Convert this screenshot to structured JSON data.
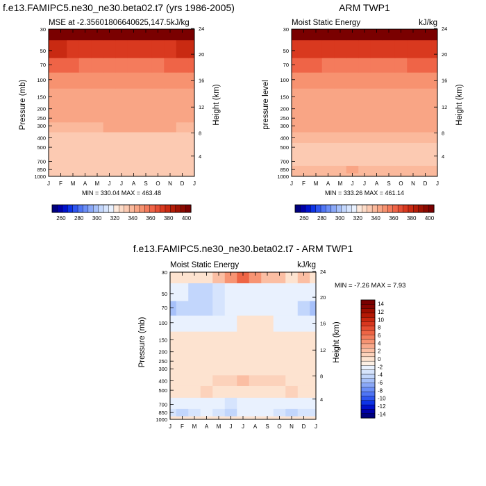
{
  "chart_data": [
    {
      "type": "heatmap",
      "panel": "model",
      "title": "f.e13.FAMIPC5.ne30_ne30.beta02.t7 (yrs 1986-2005)",
      "left_label": "MSE at -2.35601806640625,147.5",
      "right_label": "kJ/kg",
      "ylabel": "Pressure (mb)",
      "ylabel_right": "Height (km)",
      "x_ticks": [
        "J",
        "F",
        "M",
        "A",
        "M",
        "J",
        "J",
        "A",
        "S",
        "O",
        "N",
        "D",
        "J"
      ],
      "pressure_ticks": [
        "30",
        "50",
        "70",
        "100",
        "150",
        "200",
        "250",
        "300",
        "400",
        "500",
        "700",
        "850",
        "1000"
      ],
      "height_ticks": [
        "24",
        "20",
        "16",
        "12",
        "8",
        "4"
      ],
      "stats": "MIN = 330.04   MAX = 463.48",
      "min": 330.04,
      "max": 463.48,
      "pressure_levels": [
        1000,
        850,
        700,
        500,
        400,
        300,
        250,
        200,
        150,
        100,
        70,
        50,
        30
      ],
      "values": [
        [
          333,
          333,
          333,
          333,
          333,
          333,
          333,
          333,
          333,
          333,
          333,
          333,
          333
        ],
        [
          331,
          331,
          331,
          331,
          331,
          331,
          331,
          331,
          331,
          331,
          331,
          331,
          331
        ],
        [
          331,
          331,
          331,
          331,
          331,
          331,
          331,
          331,
          331,
          331,
          331,
          331,
          331
        ],
        [
          332,
          332,
          332,
          332,
          332,
          332,
          332,
          332,
          332,
          332,
          332,
          332,
          332
        ],
        [
          334,
          334,
          334,
          334,
          334,
          334,
          334,
          334,
          334,
          334,
          334,
          334,
          334
        ],
        [
          338,
          338,
          339,
          339,
          339,
          340,
          341,
          341,
          341,
          341,
          340,
          339,
          338
        ],
        [
          341,
          341,
          341,
          341,
          341,
          341,
          341,
          341,
          341,
          341,
          341,
          341,
          341
        ],
        [
          341,
          341,
          341,
          341,
          341,
          341,
          341,
          341,
          341,
          341,
          341,
          341,
          341
        ],
        [
          342,
          342,
          342,
          342,
          342,
          342,
          342,
          342,
          342,
          342,
          342,
          342,
          342
        ],
        [
          349,
          349,
          349,
          349,
          349,
          349,
          349,
          349,
          349,
          349,
          349,
          349,
          349
        ],
        [
          358,
          358,
          355,
          353,
          352,
          352,
          352,
          352,
          352,
          353,
          355,
          357,
          358
        ],
        [
          371,
          371,
          369,
          368,
          367,
          367,
          367,
          367,
          367,
          368,
          369,
          370,
          371
        ],
        [
          440,
          440,
          440,
          440,
          440,
          440,
          440,
          440,
          440,
          440,
          440,
          440,
          440
        ]
      ]
    },
    {
      "type": "heatmap",
      "panel": "observation",
      "title": "ARM TWP1",
      "left_label": "Moist Static Energy",
      "right_label": "kJ/kg",
      "ylabel": "pressure level",
      "ylabel_right": "Height (km)",
      "x_ticks": [
        "J",
        "F",
        "M",
        "A",
        "M",
        "J",
        "J",
        "A",
        "S",
        "O",
        "N",
        "D",
        "J"
      ],
      "pressure_ticks": [
        "30",
        "50",
        "70",
        "100",
        "150",
        "200",
        "250",
        "300",
        "400",
        "500",
        "700",
        "850",
        "1000"
      ],
      "height_ticks": [
        "24",
        "20",
        "16",
        "12",
        "8",
        "4"
      ],
      "stats": "MIN = 333.26   MAX = 461.14",
      "min": 333.26,
      "max": 461.14,
      "pressure_levels": [
        1000,
        850,
        700,
        500,
        400,
        300,
        250,
        200,
        150,
        100,
        70,
        50,
        30
      ],
      "values": [
        [
          336,
          336,
          336,
          336,
          336,
          336,
          336,
          336,
          336,
          336,
          336,
          336,
          336
        ],
        [
          338,
          339,
          338,
          338,
          339,
          340,
          339,
          338,
          338,
          338,
          339,
          339,
          338
        ],
        [
          334,
          334,
          334,
          334,
          334,
          334,
          334,
          334,
          334,
          334,
          334,
          334,
          334
        ],
        [
          334,
          334,
          334,
          334,
          334,
          334,
          334,
          334,
          334,
          334,
          334,
          334,
          334
        ],
        [
          336,
          337,
          337,
          338,
          338,
          338,
          338,
          338,
          338,
          338,
          337,
          337,
          336
        ],
        [
          341,
          341,
          341,
          341,
          341,
          341,
          341,
          341,
          341,
          341,
          341,
          341,
          341
        ],
        [
          341,
          341,
          341,
          341,
          341,
          341,
          341,
          341,
          341,
          341,
          341,
          341,
          341
        ],
        [
          341,
          341,
          341,
          341,
          341,
          341,
          341,
          341,
          341,
          341,
          341,
          341,
          341
        ],
        [
          342,
          342,
          342,
          342,
          342,
          342,
          342,
          342,
          342,
          342,
          342,
          342,
          342
        ],
        [
          349,
          349,
          349,
          349,
          349,
          349,
          349,
          349,
          349,
          349,
          349,
          349,
          349
        ],
        [
          357,
          357,
          355,
          353,
          353,
          353,
          352,
          353,
          353,
          353,
          355,
          357,
          357
        ],
        [
          369,
          369,
          368,
          367,
          366,
          366,
          366,
          366,
          366,
          367,
          368,
          368,
          369
        ],
        [
          440,
          440,
          440,
          440,
          440,
          440,
          440,
          440,
          440,
          440,
          440,
          440,
          440
        ]
      ]
    },
    {
      "type": "heatmap",
      "panel": "difference",
      "title": "f.e13.FAMIPC5.ne30_ne30.beta02.t7 - ARM TWP1",
      "left_label": "Moist Static Energy",
      "right_label": "kJ/kg",
      "ylabel": "Pressure (mb)",
      "ylabel_right": "Height (km)",
      "x_ticks": [
        "J",
        "F",
        "M",
        "A",
        "M",
        "J",
        "J",
        "A",
        "S",
        "O",
        "N",
        "D",
        "J"
      ],
      "pressure_ticks": [
        "30",
        "50",
        "70",
        "100",
        "150",
        "200",
        "250",
        "300",
        "400",
        "500",
        "700",
        "850",
        "1000"
      ],
      "height_ticks": [
        "24",
        "20",
        "16",
        "12",
        "8",
        "4"
      ],
      "stats": "MIN =  -7.26   MAX =   7.93",
      "min": -7.26,
      "max": 7.93,
      "pressure_levels": [
        1000,
        850,
        700,
        500,
        400,
        300,
        250,
        200,
        150,
        100,
        70,
        50,
        30
      ],
      "values": [
        [
          -1,
          -1,
          -1,
          -1,
          -1,
          -1,
          -1,
          -1,
          -1,
          -1,
          -1,
          -1,
          -1
        ],
        [
          -4,
          -5,
          -4,
          -3,
          -4,
          -5,
          -3,
          -3,
          -3,
          -4,
          -5,
          -4,
          -4
        ],
        [
          -3,
          -3,
          -3,
          -3,
          -3,
          -4,
          -3,
          -3,
          -3,
          -3,
          -3,
          -3,
          -3
        ],
        [
          -1,
          -1,
          -1,
          0.5,
          -1,
          -1,
          -1,
          -1,
          -1,
          -1,
          0.5,
          -1,
          -1
        ],
        [
          -1,
          -1,
          -1,
          -1,
          0.5,
          0.5,
          1,
          0.5,
          0.5,
          0.5,
          -1,
          -1,
          -1
        ],
        [
          -1,
          -1,
          -1,
          -1,
          -1,
          -1,
          -1,
          -1,
          -1,
          -1,
          -1,
          -1,
          -1
        ],
        [
          -1,
          -1,
          -1,
          -1,
          -1,
          -1,
          -1,
          -1,
          -1,
          -1,
          -1,
          -1,
          -1
        ],
        [
          -1,
          -1,
          -1,
          -1,
          -1,
          -1,
          -1,
          -1,
          -1,
          -1,
          -1,
          -1,
          -1
        ],
        [
          -1,
          -1,
          -1,
          -1,
          -1,
          -1,
          -1,
          -1,
          -1,
          -1,
          -1,
          -1,
          -1
        ],
        [
          -3,
          -3,
          -3,
          -3,
          -3,
          -3,
          -1,
          -1,
          -1,
          -3,
          -3,
          -3,
          -3
        ],
        [
          -6,
          -5,
          -5,
          -5,
          -4,
          -3,
          -3,
          -3,
          -3,
          -3,
          -3,
          -5,
          -6
        ],
        [
          -3,
          -3,
          -5,
          -5,
          -4,
          -3,
          -3,
          -3,
          -3,
          -3,
          -3,
          -3,
          -3
        ],
        [
          -1,
          -1,
          -1,
          -1,
          1,
          3,
          5,
          3,
          1,
          1,
          -1,
          1,
          -1
        ]
      ]
    }
  ],
  "colorbars": {
    "abs": {
      "levels": [
        255,
        260,
        265,
        270,
        275,
        280,
        285,
        290,
        295,
        300,
        305,
        310,
        315,
        320,
        325,
        330,
        335,
        340,
        345,
        350,
        355,
        360,
        365,
        370,
        375,
        380,
        385,
        390,
        395,
        400,
        405
      ],
      "labels": [
        "260",
        "280",
        "300",
        "320",
        "340",
        "360",
        "380",
        "400"
      ],
      "label_values": [
        260,
        280,
        300,
        320,
        340,
        360,
        380,
        400
      ]
    },
    "diff": {
      "levels": [
        -15,
        -14,
        -13,
        -12,
        -11,
        -10,
        -9,
        -8,
        -7,
        -6,
        -5,
        -4,
        -3,
        -2,
        -1,
        0,
        1,
        2,
        3,
        4,
        5,
        6,
        7,
        8,
        9,
        10,
        11,
        12,
        13,
        14,
        15
      ],
      "labels": [
        "14",
        "12",
        "10",
        "8",
        "6",
        "4",
        "2",
        "0",
        "-2",
        "-4",
        "-6",
        "-8",
        "-10",
        "-12",
        "-14"
      ],
      "label_values": [
        14,
        12,
        10,
        8,
        6,
        4,
        2,
        0,
        -2,
        -4,
        -6,
        -8,
        -10,
        -12,
        -14
      ]
    }
  },
  "colors": {
    "abs": [
      "#00007f",
      "#0000a8",
      "#0011cc",
      "#0d33e6",
      "#2e55f0",
      "#4f75f5",
      "#6b8ef7",
      "#8aa8f8",
      "#a6c0fa",
      "#c2d6fc",
      "#d6e4fd",
      "#e9f1fe",
      "#fde9dc",
      "#fddbc7",
      "#fccab2",
      "#fbb99c",
      "#f9a585",
      "#f79270",
      "#f47b5c",
      "#ef6447",
      "#e54e34",
      "#d9391f",
      "#c92a12",
      "#b41d08",
      "#9e1203",
      "#8a0900",
      "#7a0000"
    ],
    "diff": [
      "#00007f",
      "#0000a8",
      "#0011cc",
      "#0d33e6",
      "#2e55f0",
      "#4f75f5",
      "#6b8ef7",
      "#8aa8f8",
      "#a6c0fa",
      "#c2d6fc",
      "#d6e4fd",
      "#e9f1fe",
      "#fdf0e4",
      "#fde3d0",
      "#fcd2bb",
      "#fbbea3",
      "#f9a98b",
      "#f79473",
      "#f37d5c",
      "#ee6545",
      "#e54d31",
      "#d8371e",
      "#c8270f",
      "#b41905",
      "#9e0e00",
      "#880400",
      "#7a0000"
    ]
  }
}
